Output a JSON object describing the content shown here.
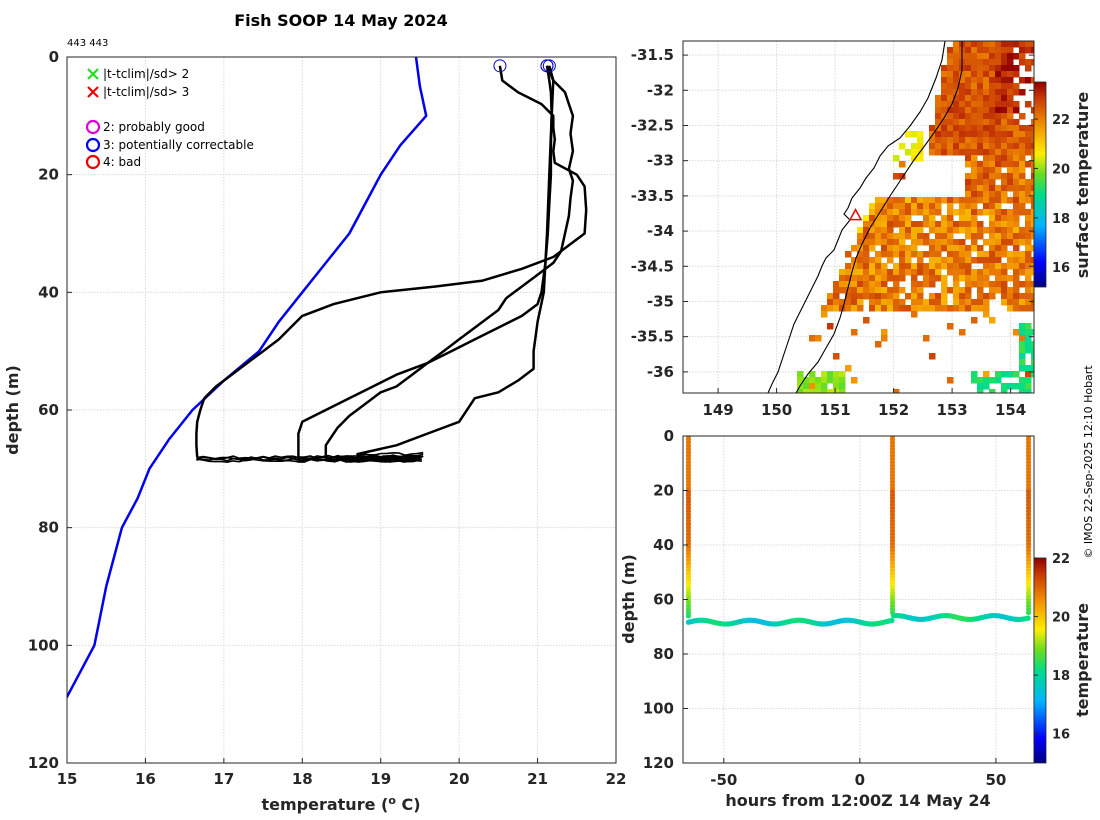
{
  "chart_data": [
    {
      "type": "line",
      "title": "Fish SOOP 14 May 2024",
      "subtitle": "443 443",
      "xlabel": "temperature (",
      "xlabel_sup": "o",
      "xlabel_tail": " C)",
      "ylabel": "depth (m)",
      "xlim": [
        15,
        22
      ],
      "ylim": [
        0,
        120
      ],
      "xticks": [
        "15",
        "16",
        "17",
        "18",
        "19",
        "20",
        "21",
        "22"
      ],
      "yticks": [
        "0",
        "20",
        "40",
        "60",
        "80",
        "100",
        "120"
      ],
      "legend": [
        {
          "marker": "x",
          "color": "#22dd22",
          "label": "|t-tclim|/sd> 2"
        },
        {
          "marker": "x",
          "color": "#ee0000",
          "label": "|t-tclim|/sd> 3"
        },
        {
          "marker": "o",
          "color": "#dd00dd",
          "label": "2: probably good"
        },
        {
          "marker": "o",
          "color": "#0000ee",
          "label": "3: potentially correctable"
        },
        {
          "marker": "o",
          "color": "#ee0000",
          "label": "4: bad"
        }
      ],
      "series": [
        {
          "name": "climatology",
          "color": "#0000ee",
          "points": [
            [
              19.45,
              0
            ],
            [
              19.5,
              5
            ],
            [
              19.58,
              10
            ],
            [
              19.25,
              15
            ],
            [
              19.0,
              20
            ],
            [
              18.8,
              25
            ],
            [
              18.6,
              30
            ],
            [
              18.3,
              35
            ],
            [
              18.0,
              40
            ],
            [
              17.7,
              45
            ],
            [
              17.45,
              50
            ],
            [
              17.0,
              55
            ],
            [
              16.6,
              60
            ],
            [
              16.3,
              65
            ],
            [
              16.05,
              70
            ],
            [
              15.9,
              75
            ],
            [
              15.7,
              80
            ],
            [
              15.5,
              90
            ],
            [
              15.35,
              100
            ],
            [
              14.95,
              110
            ]
          ]
        },
        {
          "name": "profile-1",
          "color": "#000000",
          "points": [
            [
              20.52,
              1.5
            ],
            [
              20.55,
              4
            ],
            [
              20.75,
              6
            ],
            [
              21.05,
              8
            ],
            [
              21.2,
              10
            ],
            [
              21.2,
              12
            ],
            [
              21.22,
              14
            ],
            [
              21.2,
              16
            ],
            [
              21.22,
              18
            ],
            [
              21.5,
              20
            ],
            [
              21.6,
              22
            ],
            [
              21.62,
              26
            ],
            [
              21.6,
              30
            ],
            [
              21.4,
              32
            ],
            [
              21.2,
              34
            ],
            [
              20.8,
              36
            ],
            [
              20.3,
              38
            ],
            [
              19.7,
              39
            ],
            [
              19.0,
              40
            ],
            [
              18.4,
              42
            ],
            [
              18.0,
              44
            ],
            [
              17.85,
              46
            ],
            [
              17.7,
              48
            ],
            [
              17.5,
              50
            ],
            [
              17.3,
              52
            ],
            [
              17.1,
              54
            ],
            [
              16.9,
              56
            ],
            [
              16.75,
              58
            ],
            [
              16.7,
              60
            ],
            [
              16.66,
              62
            ],
            [
              16.65,
              64
            ],
            [
              16.65,
              66
            ],
            [
              16.66,
              68
            ]
          ]
        },
        {
          "name": "profile-2",
          "color": "#000000",
          "points": [
            [
              21.12,
              1.5
            ],
            [
              21.15,
              4
            ],
            [
              21.17,
              6
            ],
            [
              21.18,
              10
            ],
            [
              21.17,
              15
            ],
            [
              21.17,
              20
            ],
            [
              21.15,
              25
            ],
            [
              21.13,
              30
            ],
            [
              21.1,
              35
            ],
            [
              21.05,
              40
            ],
            [
              21.0,
              42
            ],
            [
              20.8,
              44
            ],
            [
              20.5,
              46
            ],
            [
              20.2,
              48
            ],
            [
              19.9,
              50
            ],
            [
              19.6,
              52
            ],
            [
              19.2,
              54
            ],
            [
              18.9,
              56
            ],
            [
              18.6,
              58
            ],
            [
              18.3,
              60
            ],
            [
              18.0,
              62
            ],
            [
              17.95,
              64
            ],
            [
              17.95,
              66
            ],
            [
              17.95,
              68
            ]
          ]
        },
        {
          "name": "profile-3",
          "color": "#000000",
          "points": [
            [
              21.12,
              1.5
            ],
            [
              21.2,
              4
            ],
            [
              21.35,
              6
            ],
            [
              21.4,
              8
            ],
            [
              21.45,
              10
            ],
            [
              21.42,
              13
            ],
            [
              21.45,
              16
            ],
            [
              21.4,
              19
            ],
            [
              21.45,
              21
            ],
            [
              21.42,
              24
            ],
            [
              21.4,
              27
            ],
            [
              21.35,
              30
            ],
            [
              21.3,
              33
            ],
            [
              21.2,
              35
            ],
            [
              21.0,
              37
            ],
            [
              20.8,
              39
            ],
            [
              20.6,
              41
            ],
            [
              20.5,
              43
            ],
            [
              20.3,
              45
            ],
            [
              20.0,
              48
            ],
            [
              19.8,
              50
            ],
            [
              19.6,
              52
            ],
            [
              19.4,
              54
            ],
            [
              19.2,
              56
            ],
            [
              19.0,
              57
            ],
            [
              18.8,
              59
            ],
            [
              18.6,
              61
            ],
            [
              18.45,
              63
            ],
            [
              18.35,
              65
            ],
            [
              18.3,
              66
            ],
            [
              18.3,
              68
            ]
          ]
        },
        {
          "name": "profile-4",
          "color": "#000000",
          "points": [
            [
              21.15,
              1.5
            ],
            [
              21.2,
              4
            ],
            [
              21.18,
              10
            ],
            [
              21.15,
              20
            ],
            [
              21.12,
              30
            ],
            [
              21.08,
              40
            ],
            [
              21.0,
              45
            ],
            [
              20.95,
              50
            ],
            [
              20.95,
              53
            ],
            [
              20.75,
              55
            ],
            [
              20.5,
              57
            ],
            [
              20.2,
              58
            ],
            [
              20.0,
              62
            ],
            [
              19.6,
              64
            ],
            [
              19.2,
              66
            ],
            [
              18.7,
              67.5
            ]
          ]
        }
      ]
    },
    {
      "type": "heatmap",
      "name": "map",
      "xlim": [
        148.4,
        154.4
      ],
      "ylim": [
        -36.3,
        -31.3
      ],
      "xticks": [
        "149",
        "150",
        "151",
        "152",
        "153",
        "154"
      ],
      "yticks": [
        "-31.5",
        "-32",
        "-32.5",
        "-33",
        "-33.5",
        "-34",
        "-34.5",
        "-35",
        "-35.5",
        "-36"
      ],
      "colorbar_label": "surface temperature",
      "colorbar_range": [
        15.2,
        23.5
      ],
      "colorbar_ticks": [
        "16",
        "18",
        "20",
        "22"
      ],
      "marker": {
        "lon": 151.35,
        "lat": -33.78,
        "color": "#ee0000"
      }
    },
    {
      "type": "scatter",
      "name": "time-depth",
      "xlabel": "hours from 12:00Z 14 May 24",
      "ylabel": "depth (m)",
      "xlim": [
        -65,
        64
      ],
      "ylim": [
        0,
        120
      ],
      "xticks": [
        "-50",
        "0",
        "50"
      ],
      "yticks": [
        "0",
        "20",
        "40",
        "60",
        "80",
        "100",
        "120"
      ],
      "colorbar_label": "temperature",
      "colorbar_range": [
        15,
        22
      ],
      "colorbar_ticks": [
        "16",
        "18",
        "20",
        "22"
      ],
      "casts_hours": [
        -63,
        12,
        62
      ]
    }
  ],
  "credit": "© IMOS 22-Sep-2025 12:10 Hobart"
}
